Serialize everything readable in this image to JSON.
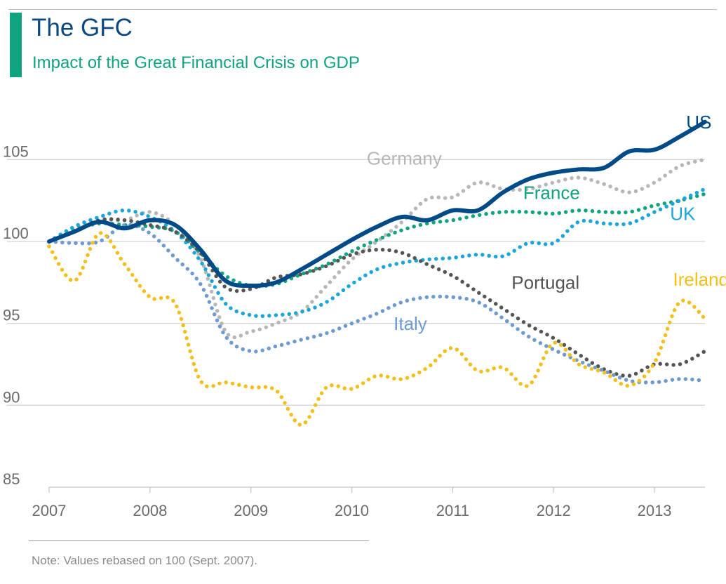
{
  "header": {
    "title": "The GFC",
    "subtitle": "Impact of the Great Financial Crisis on GDP"
  },
  "colors": {
    "accent": "#0fa37f",
    "title": "#0a4a80",
    "axis_text": "#6b6b6b",
    "gridline": "#d4d4d4"
  },
  "footer": {
    "note": "Note: Values rebased on 100 (Sept. 2007)."
  },
  "chart_data": {
    "type": "line",
    "title": "The GFC",
    "subtitle": "Impact of the Great Financial Crisis on GDP",
    "xlim": [
      2007,
      2013.5
    ],
    "ylim": [
      85,
      107.5
    ],
    "y_ticks": [
      85,
      90,
      95,
      100,
      105
    ],
    "x_ticks": [
      2007,
      2008,
      2009,
      2010,
      2011,
      2012,
      2013
    ],
    "grid": "horizontal",
    "legend": "direct labels at line ends",
    "series": [
      {
        "name": "US",
        "color": "#004b87",
        "style": "solid",
        "points": [
          [
            2007,
            100
          ],
          [
            2007.25,
            100.6
          ],
          [
            2007.5,
            101.2
          ],
          [
            2007.75,
            100.8
          ],
          [
            2008,
            101.3
          ],
          [
            2008.25,
            101
          ],
          [
            2008.5,
            99.5
          ],
          [
            2008.75,
            97.6
          ],
          [
            2009,
            97.3
          ],
          [
            2009.25,
            97.5
          ],
          [
            2009.5,
            98.3
          ],
          [
            2009.75,
            99.2
          ],
          [
            2010,
            100.1
          ],
          [
            2010.25,
            100.9
          ],
          [
            2010.5,
            101.5
          ],
          [
            2010.75,
            101.3
          ],
          [
            2011,
            101.9
          ],
          [
            2011.25,
            101.9
          ],
          [
            2011.5,
            103
          ],
          [
            2011.75,
            103.8
          ],
          [
            2012,
            104.2
          ],
          [
            2012.25,
            104.4
          ],
          [
            2012.5,
            104.5
          ],
          [
            2012.75,
            105.5
          ],
          [
            2013,
            105.6
          ],
          [
            2013.25,
            106.4
          ],
          [
            2013.5,
            107.3
          ]
        ]
      },
      {
        "name": "Germany",
        "color": "#b7b7b7",
        "style": "dotted",
        "points": [
          [
            2007,
            100
          ],
          [
            2007.25,
            100.8
          ],
          [
            2007.5,
            101.3
          ],
          [
            2007.75,
            101.3
          ],
          [
            2008,
            101.8
          ],
          [
            2008.25,
            101
          ],
          [
            2008.5,
            99
          ],
          [
            2008.75,
            94.5
          ],
          [
            2009,
            94.5
          ],
          [
            2009.25,
            95
          ],
          [
            2009.5,
            95.7
          ],
          [
            2009.75,
            97.3
          ],
          [
            2010,
            98.9
          ],
          [
            2010.25,
            100
          ],
          [
            2010.5,
            101.2
          ],
          [
            2010.75,
            102.6
          ],
          [
            2011,
            102.7
          ],
          [
            2011.25,
            103.6
          ],
          [
            2011.5,
            103.2
          ],
          [
            2011.75,
            103.2
          ],
          [
            2012,
            103.6
          ],
          [
            2012.25,
            103.9
          ],
          [
            2012.5,
            103.5
          ],
          [
            2012.75,
            103
          ],
          [
            2013,
            103.6
          ],
          [
            2013.25,
            104.6
          ],
          [
            2013.5,
            105
          ]
        ]
      },
      {
        "name": "France",
        "color": "#0fa37f",
        "style": "dotted",
        "points": [
          [
            2007,
            100
          ],
          [
            2007.25,
            100.7
          ],
          [
            2007.5,
            101.1
          ],
          [
            2007.75,
            101
          ],
          [
            2008,
            100.9
          ],
          [
            2008.25,
            100.6
          ],
          [
            2008.5,
            99.3
          ],
          [
            2008.75,
            97.9
          ],
          [
            2009,
            97.3
          ],
          [
            2009.25,
            97.4
          ],
          [
            2009.5,
            98
          ],
          [
            2009.75,
            98.6
          ],
          [
            2010,
            99.4
          ],
          [
            2010.25,
            100.1
          ],
          [
            2010.5,
            100.7
          ],
          [
            2010.75,
            101.1
          ],
          [
            2011,
            101.3
          ],
          [
            2011.25,
            101.6
          ],
          [
            2011.5,
            101.8
          ],
          [
            2011.75,
            101.8
          ],
          [
            2012,
            101.7
          ],
          [
            2012.25,
            101.9
          ],
          [
            2012.5,
            101.8
          ],
          [
            2012.75,
            101.8
          ],
          [
            2013,
            102.2
          ],
          [
            2013.25,
            102.5
          ],
          [
            2013.5,
            102.9
          ]
        ]
      },
      {
        "name": "UK",
        "color": "#1aa5dc",
        "style": "dotted",
        "points": [
          [
            2007,
            100
          ],
          [
            2007.25,
            100.9
          ],
          [
            2007.5,
            101.5
          ],
          [
            2007.75,
            101.9
          ],
          [
            2008,
            101.5
          ],
          [
            2008.25,
            100.6
          ],
          [
            2008.5,
            98.8
          ],
          [
            2008.75,
            96.2
          ],
          [
            2009,
            95.5
          ],
          [
            2009.25,
            95.5
          ],
          [
            2009.5,
            95.7
          ],
          [
            2009.75,
            96.3
          ],
          [
            2010,
            97.4
          ],
          [
            2010.25,
            98.3
          ],
          [
            2010.5,
            98.7
          ],
          [
            2010.75,
            98.9
          ],
          [
            2011,
            99
          ],
          [
            2011.25,
            99.2
          ],
          [
            2011.5,
            99.1
          ],
          [
            2011.75,
            99.9
          ],
          [
            2012,
            99.9
          ],
          [
            2012.25,
            101.2
          ],
          [
            2012.5,
            101.1
          ],
          [
            2012.75,
            101.1
          ],
          [
            2013,
            101.8
          ],
          [
            2013.25,
            102.5
          ],
          [
            2013.5,
            103.2
          ]
        ]
      },
      {
        "name": "Portugal",
        "color": "#555555",
        "style": "dotted",
        "points": [
          [
            2007,
            100
          ],
          [
            2007.25,
            100.6
          ],
          [
            2007.5,
            101.3
          ],
          [
            2007.75,
            101.3
          ],
          [
            2008,
            101
          ],
          [
            2008.25,
            100.6
          ],
          [
            2008.5,
            99.3
          ],
          [
            2008.75,
            97.2
          ],
          [
            2009,
            97.1
          ],
          [
            2009.25,
            97.8
          ],
          [
            2009.5,
            98
          ],
          [
            2009.75,
            98.5
          ],
          [
            2010,
            99.2
          ],
          [
            2010.25,
            99.5
          ],
          [
            2010.5,
            99.3
          ],
          [
            2010.75,
            98.6
          ],
          [
            2011,
            97.9
          ],
          [
            2011.25,
            96.9
          ],
          [
            2011.5,
            95.9
          ],
          [
            2011.75,
            94.9
          ],
          [
            2012,
            94.1
          ],
          [
            2012.25,
            93.1
          ],
          [
            2012.5,
            92.2
          ],
          [
            2012.75,
            91.8
          ],
          [
            2013,
            92.5
          ],
          [
            2013.25,
            92.5
          ],
          [
            2013.5,
            93.3
          ]
        ]
      },
      {
        "name": "Italy",
        "color": "#6c9bd2",
        "style": "dotted",
        "points": [
          [
            2007,
            100
          ],
          [
            2007.25,
            99.9
          ],
          [
            2007.5,
            100
          ],
          [
            2007.75,
            101
          ],
          [
            2008,
            100.5
          ],
          [
            2008.25,
            99
          ],
          [
            2008.5,
            97.4
          ],
          [
            2008.75,
            94.2
          ],
          [
            2009,
            93.3
          ],
          [
            2009.25,
            93.6
          ],
          [
            2009.5,
            94
          ],
          [
            2009.75,
            94.4
          ],
          [
            2010,
            95
          ],
          [
            2010.25,
            95.6
          ],
          [
            2010.5,
            96.3
          ],
          [
            2010.75,
            96.6
          ],
          [
            2011,
            96.6
          ],
          [
            2011.25,
            96.3
          ],
          [
            2011.5,
            95.3
          ],
          [
            2011.75,
            94.2
          ],
          [
            2012,
            93.4
          ],
          [
            2012.25,
            92.7
          ],
          [
            2012.5,
            92.1
          ],
          [
            2012.75,
            91.5
          ],
          [
            2013,
            91.4
          ],
          [
            2013.25,
            91.6
          ],
          [
            2013.5,
            91.5
          ]
        ]
      },
      {
        "name": "Ireland",
        "color": "#f5bf1a",
        "style": "dotted",
        "points": [
          [
            2007,
            99.7
          ],
          [
            2007.25,
            97.6
          ],
          [
            2007.5,
            100.5
          ],
          [
            2007.75,
            98.6
          ],
          [
            2008,
            96.6
          ],
          [
            2008.25,
            96.2
          ],
          [
            2008.5,
            91.5
          ],
          [
            2008.75,
            91.4
          ],
          [
            2009,
            91.1
          ],
          [
            2009.25,
            90.9
          ],
          [
            2009.5,
            88.8
          ],
          [
            2009.75,
            91.1
          ],
          [
            2010,
            91
          ],
          [
            2010.25,
            91.8
          ],
          [
            2010.5,
            91.6
          ],
          [
            2010.75,
            92.3
          ],
          [
            2011,
            93.5
          ],
          [
            2011.25,
            92.1
          ],
          [
            2011.5,
            92.3
          ],
          [
            2011.75,
            91.2
          ],
          [
            2012,
            93.8
          ],
          [
            2012.25,
            92.5
          ],
          [
            2012.5,
            92
          ],
          [
            2012.75,
            91.2
          ],
          [
            2013,
            92.6
          ],
          [
            2013.25,
            96.3
          ],
          [
            2013.5,
            95.3
          ]
        ]
      }
    ],
    "labels": [
      {
        "text": "US",
        "series": "US",
        "anchor": [
          2013.44,
          106.9
        ]
      },
      {
        "text": "Germany",
        "series": "Germany",
        "anchor": [
          2010.52,
          104.7
        ]
      },
      {
        "text": "France",
        "series": "France",
        "anchor": [
          2011.98,
          102.6
        ]
      },
      {
        "text": "UK",
        "series": "UK",
        "anchor": [
          2013.28,
          101.3
        ]
      },
      {
        "text": "Portugal",
        "series": "Portugal",
        "anchor": [
          2011.92,
          97.1
        ]
      },
      {
        "text": "Ireland",
        "series": "Ireland",
        "anchor": [
          2013.46,
          97.3
        ]
      },
      {
        "text": "Italy",
        "series": "Italy",
        "anchor": [
          2010.58,
          94.6
        ]
      }
    ]
  }
}
